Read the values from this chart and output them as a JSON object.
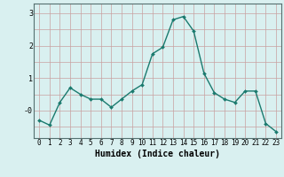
{
  "x": [
    0,
    1,
    2,
    3,
    4,
    5,
    6,
    7,
    8,
    9,
    10,
    11,
    12,
    13,
    14,
    15,
    16,
    17,
    18,
    19,
    20,
    21,
    22,
    23
  ],
  "y": [
    -0.3,
    -0.45,
    0.25,
    0.7,
    0.5,
    0.35,
    0.35,
    0.1,
    0.35,
    0.6,
    0.8,
    1.75,
    1.95,
    2.8,
    2.9,
    2.45,
    1.15,
    0.55,
    0.35,
    0.25,
    0.6,
    0.6,
    -0.4,
    -0.65
  ],
  "line_color": "#1a7a6e",
  "marker": "D",
  "marker_size": 2.0,
  "bg_color": "#d9f0f0",
  "xlabel": "Humidex (Indice chaleur)",
  "ylim": [
    -0.85,
    3.3
  ],
  "line_width": 1.0,
  "xlabel_fontsize": 7.0,
  "tick_fontsize": 5.5
}
